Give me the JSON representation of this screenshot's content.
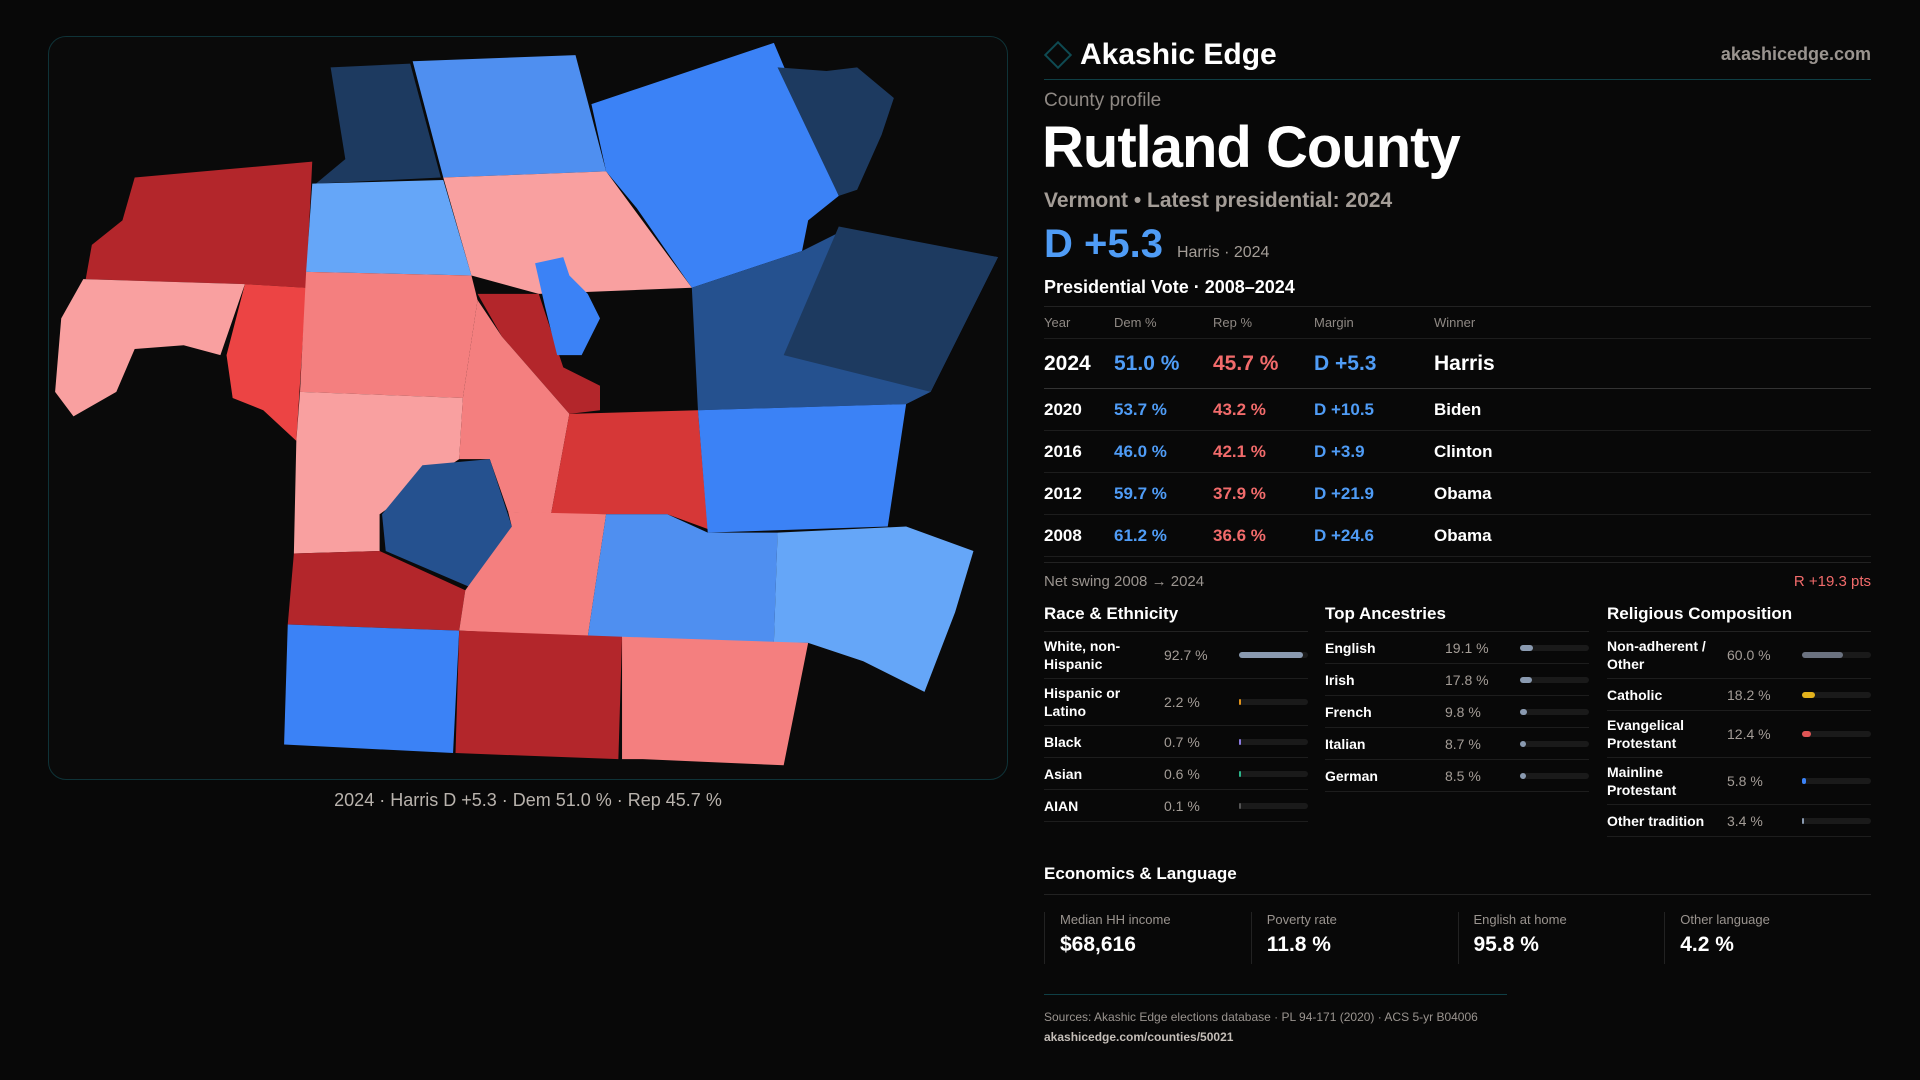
{
  "header": {
    "brand": "Akashic Edge",
    "site": "akashicedge.com"
  },
  "profile": {
    "eyebrow": "County profile",
    "title": "Rutland County",
    "subtitle": "Vermont • Latest presidential: 2024",
    "margin": "D +5.3",
    "margin_note": "Harris · 2024"
  },
  "map": {
    "caption": "2024 · Harris D +5.3 · Dem 51.0 % · Rep 45.7 %",
    "colors": {
      "navy": "#1d3a60",
      "navy2": "#25518f",
      "blue": "#3b82f6",
      "mid_blue": "#4f8ff0",
      "light_blue": "#65a6f8",
      "dark_red": "#b3262b",
      "red": "#d63737",
      "bright_red": "#ec4444",
      "salmon": "#f47f7f",
      "pink": "#f9a0a0"
    }
  },
  "votes": {
    "title": "Presidential Vote · 2008–2024",
    "headers": [
      "Year",
      "Dem %",
      "Rep %",
      "Margin",
      "Winner"
    ],
    "rows": [
      [
        "2024",
        "51.0 %",
        "45.7 %",
        "D +5.3",
        "Harris"
      ],
      [
        "2020",
        "53.7 %",
        "43.2 %",
        "D +10.5",
        "Biden"
      ],
      [
        "2016",
        "46.0 %",
        "42.1 %",
        "D +3.9",
        "Clinton"
      ],
      [
        "2012",
        "59.7 %",
        "37.9 %",
        "D +21.9",
        "Obama"
      ],
      [
        "2008",
        "61.2 %",
        "36.6 %",
        "D +24.6",
        "Obama"
      ]
    ],
    "swing_label": "Net swing 2008 → 2024",
    "swing_value": "R +19.3 pts"
  },
  "race": {
    "title": "Race & Ethnicity",
    "items": [
      {
        "label": "White, non-Hispanic",
        "value": "92.7 %",
        "pct": 92.7,
        "color": "#8a9ab0"
      },
      {
        "label": "Hispanic or Latino",
        "value": "2.2 %",
        "pct": 2.2,
        "color": "#e0921a"
      },
      {
        "label": "Black",
        "value": "0.7 %",
        "pct": 0.7,
        "color": "#8b7ae0"
      },
      {
        "label": "Asian",
        "value": "0.6 %",
        "pct": 0.6,
        "color": "#2bb58a"
      },
      {
        "label": "AIAN",
        "value": "0.1 %",
        "pct": 0.1,
        "color": "#555"
      }
    ]
  },
  "ancestry": {
    "title": "Top Ancestries",
    "items": [
      {
        "label": "English",
        "value": "19.1 %",
        "pct": 19.1,
        "color": "#8a9ab0"
      },
      {
        "label": "Irish",
        "value": "17.8 %",
        "pct": 17.8,
        "color": "#8a9ab0"
      },
      {
        "label": "French",
        "value": "9.8 %",
        "pct": 9.8,
        "color": "#8a9ab0"
      },
      {
        "label": "Italian",
        "value": "8.7 %",
        "pct": 8.7,
        "color": "#8a9ab0"
      },
      {
        "label": "German",
        "value": "8.5 %",
        "pct": 8.5,
        "color": "#8a9ab0"
      }
    ]
  },
  "religion": {
    "title": "Religious Composition",
    "items": [
      {
        "label": "Non-adherent / Other",
        "value": "60.0 %",
        "pct": 60.0,
        "color": "#6b7280"
      },
      {
        "label": "Catholic",
        "value": "18.2 %",
        "pct": 18.2,
        "color": "#e3b21c"
      },
      {
        "label": "Evangelical Protestant",
        "value": "12.4 %",
        "pct": 12.4,
        "color": "#e05555"
      },
      {
        "label": "Mainline Protestant",
        "value": "5.8 %",
        "pct": 5.8,
        "color": "#3b82f6"
      },
      {
        "label": "Other tradition",
        "value": "3.4 %",
        "pct": 3.4,
        "color": "#8a9ab0"
      }
    ]
  },
  "economics": {
    "title": "Economics & Language",
    "cards": [
      {
        "label": "Median HH income",
        "value": "$68,616"
      },
      {
        "label": "Poverty rate",
        "value": "11.8 %"
      },
      {
        "label": "English at home",
        "value": "95.8 %"
      },
      {
        "label": "Other language",
        "value": "4.2 %"
      }
    ]
  },
  "sources": {
    "text": "Sources: Akashic Edge elections database · PL 94-171 (2020) · ACS 5-yr B04006",
    "url": "akashicedge.com/counties/50021"
  }
}
